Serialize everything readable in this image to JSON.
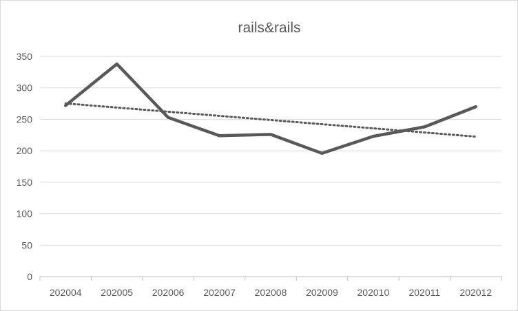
{
  "chart_data": {
    "type": "line",
    "title": "rails&rails",
    "xlabel": "",
    "ylabel": "",
    "categories": [
      "202004",
      "202005",
      "202006",
      "202007",
      "202008",
      "202009",
      "202010",
      "202011",
      "202012"
    ],
    "series": [
      {
        "values": [
          272,
          338,
          253,
          224,
          226,
          196,
          223,
          238,
          270
        ],
        "color": "#595959",
        "style": "solid"
      }
    ],
    "trendline": {
      "type": "linear",
      "style": "dotted",
      "color": "#595959"
    },
    "ylim": [
      0,
      350
    ],
    "yticks": [
      0,
      50,
      100,
      150,
      200,
      250,
      300,
      350
    ],
    "grid": true,
    "legend": "none"
  }
}
